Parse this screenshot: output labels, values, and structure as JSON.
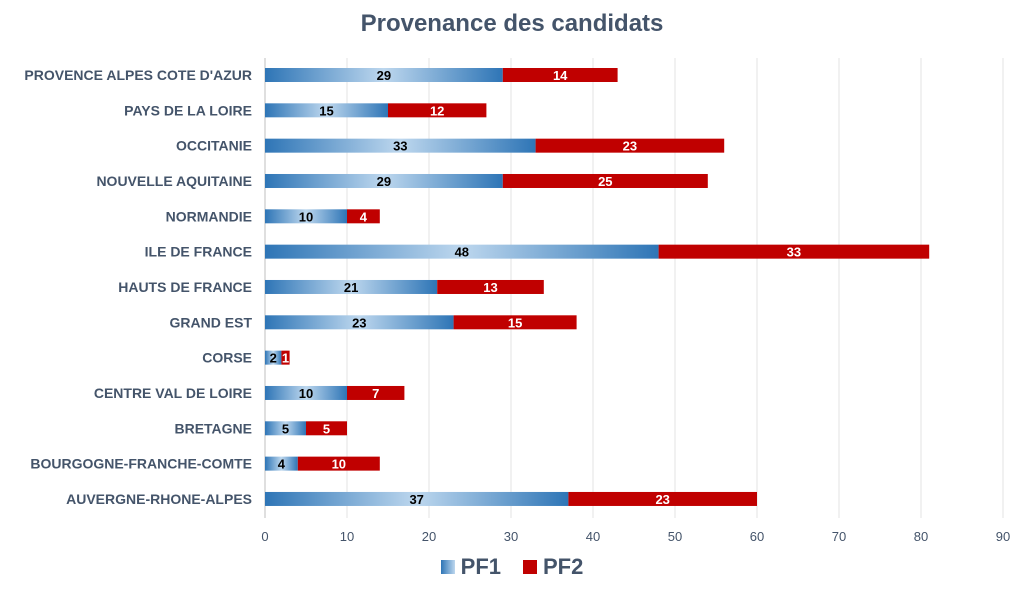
{
  "chart_data": {
    "type": "bar",
    "orientation": "horizontal",
    "stacked": true,
    "title": "Provenance des candidats",
    "categories": [
      "PROVENCE ALPES COTE D'AZUR",
      "PAYS DE LA LOIRE",
      "OCCITANIE",
      "NOUVELLE AQUITAINE",
      "NORMANDIE",
      "ILE DE FRANCE",
      "HAUTS DE FRANCE",
      "GRAND EST",
      "CORSE",
      "CENTRE VAL DE LOIRE",
      "BRETAGNE",
      "BOURGOGNE-FRANCHE-COMTE",
      "AUVERGNE-RHONE-ALPES"
    ],
    "series": [
      {
        "name": "PF1",
        "color": "#2e75b6",
        "values": [
          29,
          15,
          33,
          29,
          10,
          48,
          21,
          23,
          2,
          10,
          5,
          4,
          37
        ]
      },
      {
        "name": "PF2",
        "color": "#c00000",
        "values": [
          14,
          12,
          23,
          25,
          4,
          33,
          13,
          15,
          1,
          7,
          5,
          10,
          23
        ]
      }
    ],
    "xlim": [
      0,
      90
    ],
    "xticks": [
      0,
      10,
      20,
      30,
      40,
      50,
      60,
      70,
      80,
      90
    ],
    "grid": "vertical",
    "legend": "bottom"
  }
}
